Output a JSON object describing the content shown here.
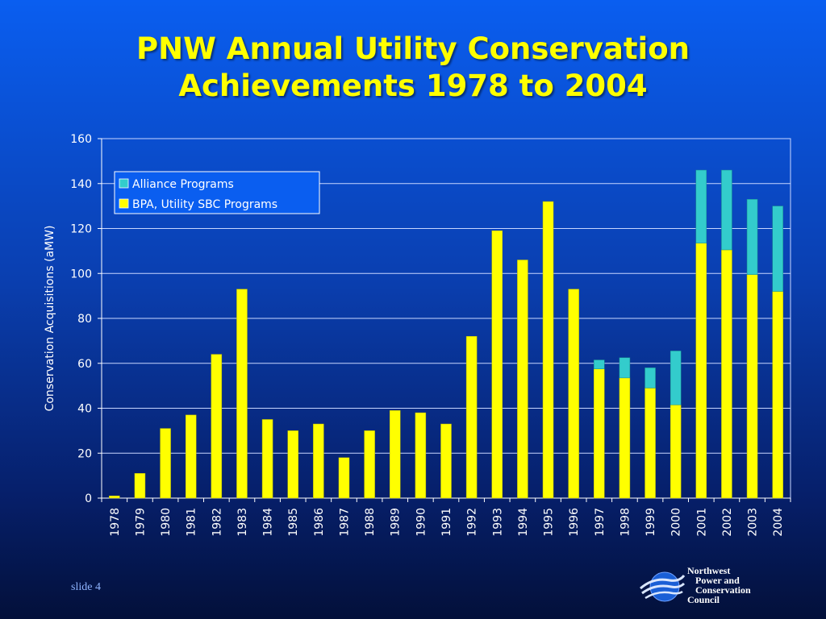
{
  "slide": {
    "title_lines": [
      "PNW Annual Utility Conservation",
      "Achievements 1978 to 2004"
    ],
    "slide_number": "slide 4",
    "logo_lines": [
      "Northwest",
      "Power and",
      "Conservation",
      "Council"
    ]
  },
  "colors": {
    "bpa": "#ffff00",
    "alliance": "#33cccc",
    "title": "#ffff00"
  },
  "chart_data": {
    "type": "bar",
    "stacked": true,
    "title": "PNW Annual Utility Conservation Achievements 1978 to 2004",
    "xlabel": "",
    "ylabel": "Conservation Acquisitions (aMW)",
    "ylim": [
      0,
      160
    ],
    "yticks": [
      0,
      20,
      40,
      60,
      80,
      100,
      120,
      140,
      160
    ],
    "grid": true,
    "legend_position": "top-left",
    "categories": [
      "1978",
      "1979",
      "1980",
      "1981",
      "1982",
      "1983",
      "1984",
      "1985",
      "1986",
      "1987",
      "1988",
      "1989",
      "1990",
      "1991",
      "1992",
      "1993",
      "1994",
      "1995",
      "1996",
      "1997",
      "1998",
      "1999",
      "2000",
      "2001",
      "2002",
      "2003",
      "2004"
    ],
    "series": [
      {
        "name": "BPA, Utility SBC Programs",
        "color": "#ffff00",
        "values": [
          1,
          11,
          31,
          37,
          64,
          93,
          35,
          30,
          33,
          18,
          30,
          39,
          38,
          33,
          72,
          119,
          106,
          132,
          93,
          57.5,
          53.5,
          49,
          41.5,
          113.5,
          110.5,
          99.5,
          92
        ]
      },
      {
        "name": "Alliance Programs",
        "color": "#33cccc",
        "values": [
          0,
          0,
          0,
          0,
          0,
          0,
          0,
          0,
          0,
          0,
          0,
          0,
          0,
          0,
          0,
          0,
          0,
          0,
          0,
          4,
          9,
          9,
          24,
          32.5,
          35.5,
          33.5,
          38
        ]
      }
    ],
    "legend_order": [
      "Alliance Programs",
      "BPA, Utility SBC Programs"
    ]
  }
}
